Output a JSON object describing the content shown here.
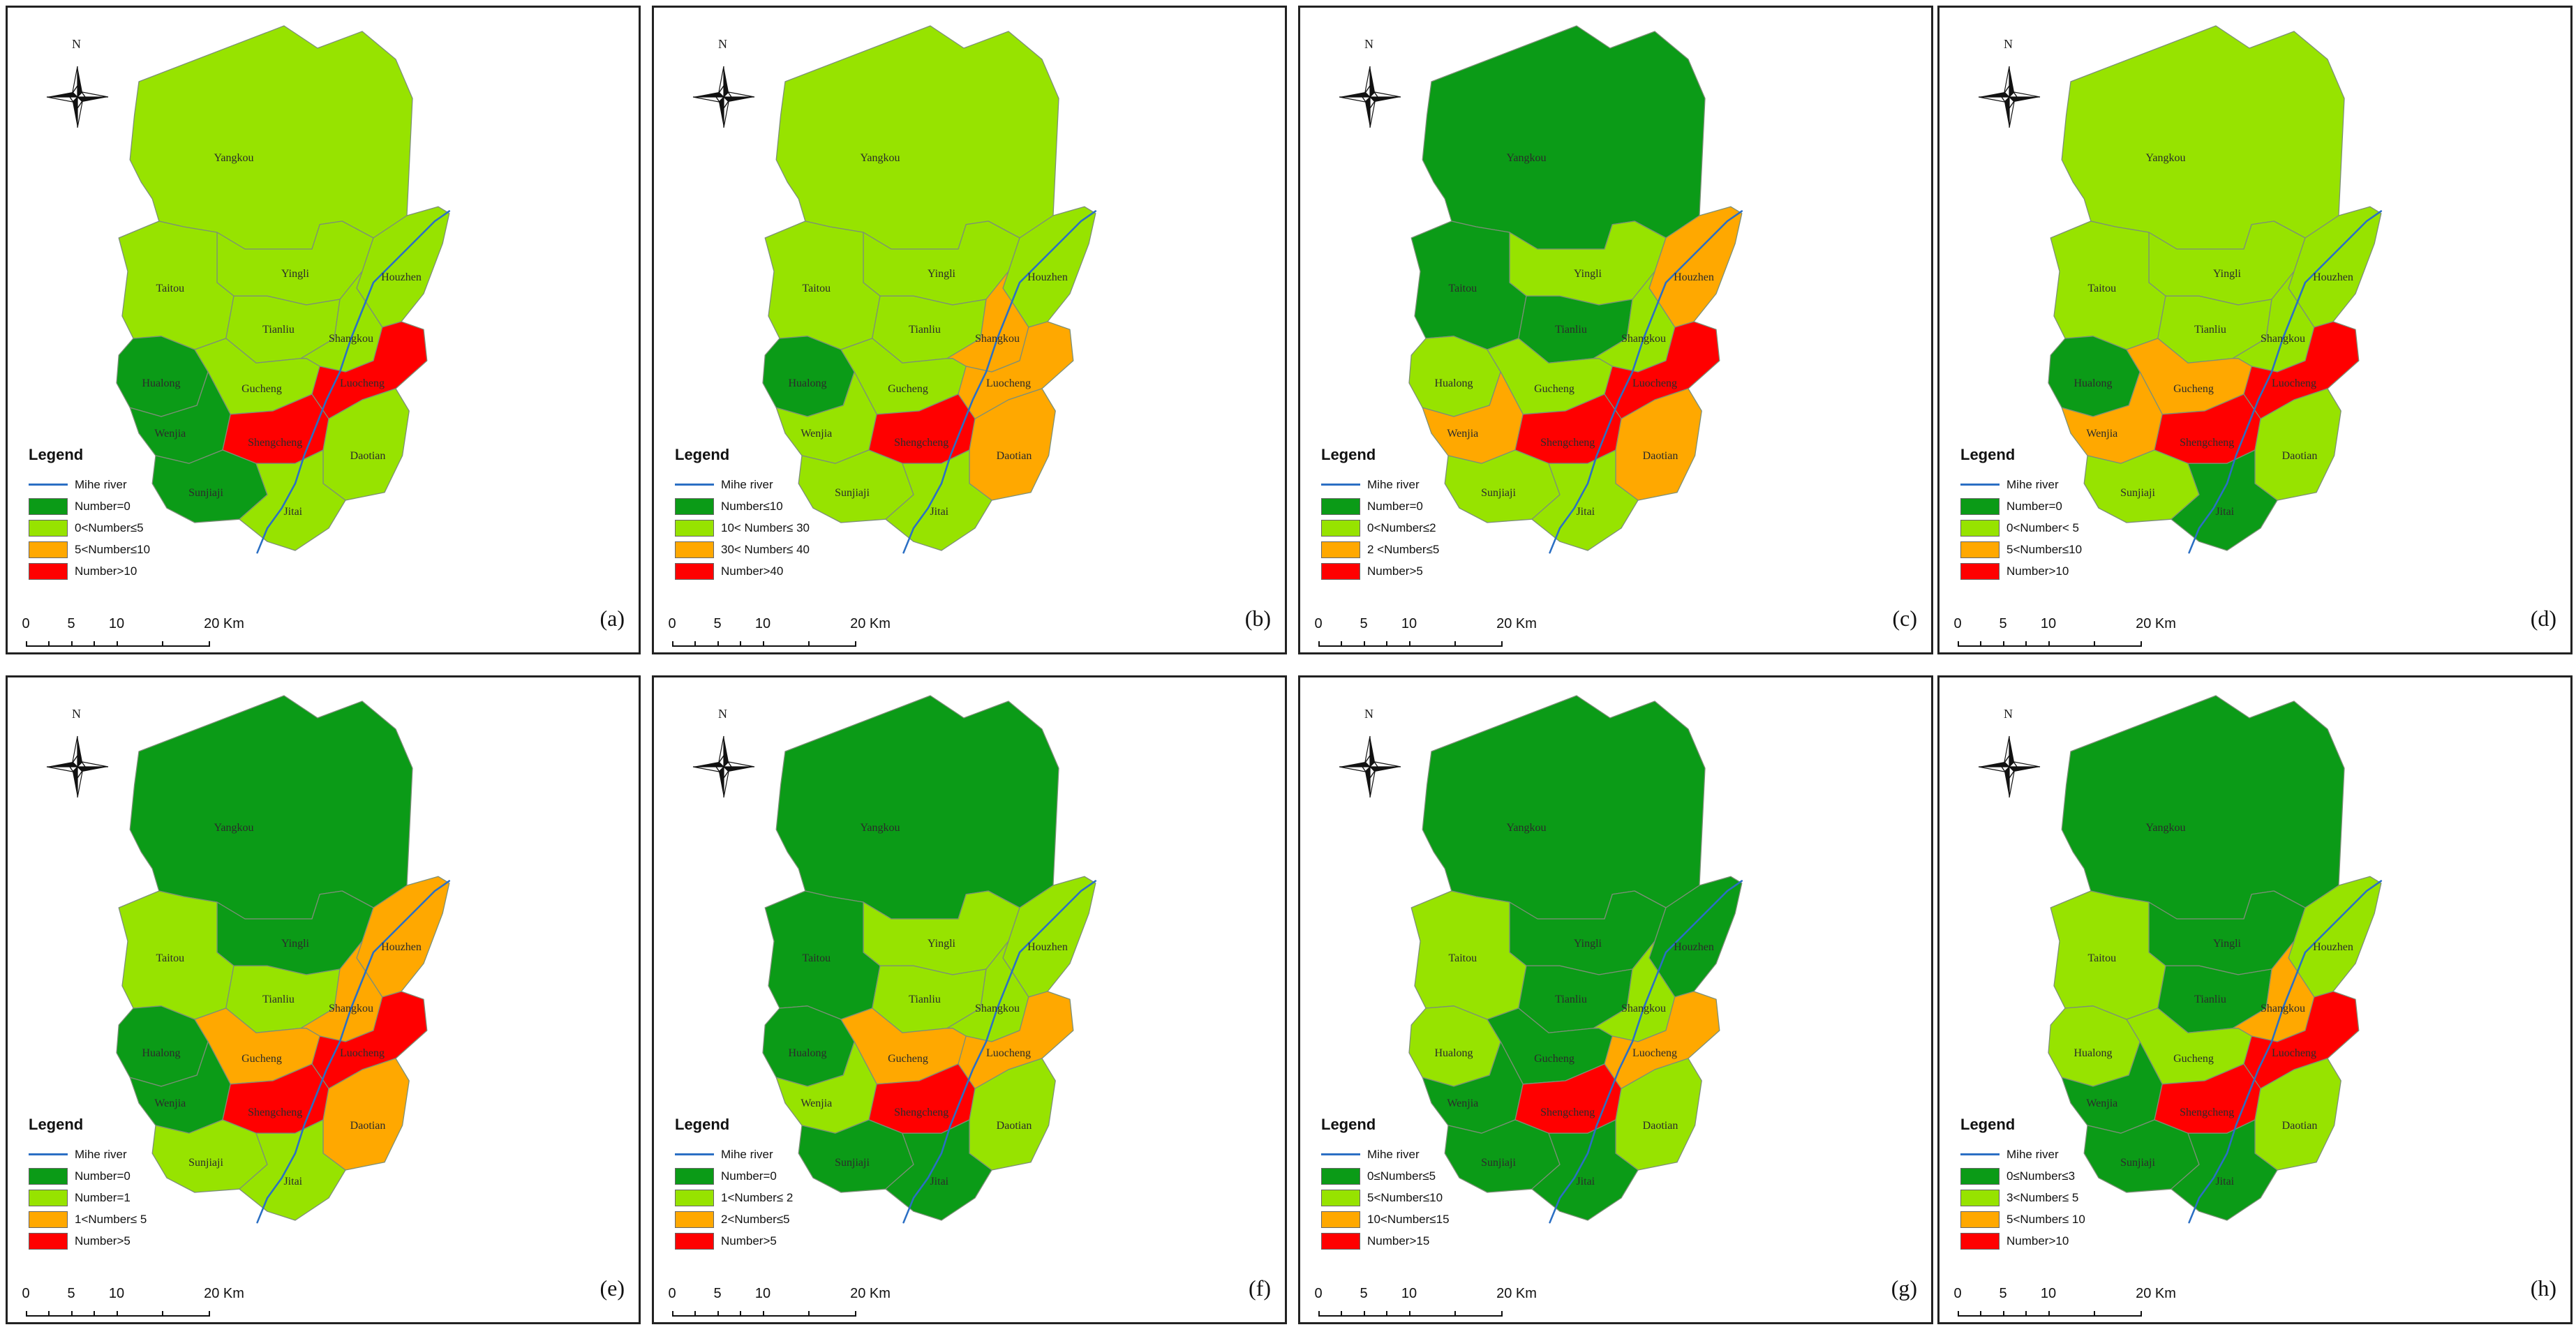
{
  "north_label": "N",
  "river_name": "Mihe river",
  "legend_title": "Legend",
  "scale_labels": [
    "0",
    "5",
    "10",
    "20 Km"
  ],
  "palette": {
    "dark_green": "#0b9b17",
    "light_green": "#97e300",
    "orange": "#ffa800",
    "red": "#ff0000",
    "river": "#2b6fc4",
    "border": "#7c8f78"
  },
  "regions": [
    {
      "key": "yangkou",
      "label": "Yangkou"
    },
    {
      "key": "yingli",
      "label": "Yingli"
    },
    {
      "key": "taitou",
      "label": "Taitou"
    },
    {
      "key": "tianliu",
      "label": "Tianliu"
    },
    {
      "key": "houzhen",
      "label": "Houzhen"
    },
    {
      "key": "shangkou",
      "label": "Shangkou"
    },
    {
      "key": "hualong",
      "label": "Hualong"
    },
    {
      "key": "gucheng",
      "label": "Gucheng"
    },
    {
      "key": "luocheng",
      "label": "Luocheng"
    },
    {
      "key": "wenjia",
      "label": "Wenjia"
    },
    {
      "key": "shengcheng",
      "label": "Shengcheng"
    },
    {
      "key": "daotian",
      "label": "Daotian"
    },
    {
      "key": "sunjiaji",
      "label": "Sunjiaji"
    },
    {
      "key": "jitai",
      "label": "Jitai"
    }
  ],
  "panels": [
    {
      "id": "a",
      "label": "(a)",
      "legend": [
        "Number=0",
        "0<Number≤5",
        "5<Number≤10",
        "Number>10"
      ],
      "colors": {
        "yangkou": "light_green",
        "yingli": "light_green",
        "taitou": "light_green",
        "tianliu": "light_green",
        "houzhen": "light_green",
        "shangkou": "light_green",
        "hualong": "dark_green",
        "gucheng": "light_green",
        "luocheng": "red",
        "wenjia": "dark_green",
        "shengcheng": "red",
        "daotian": "light_green",
        "sunjiaji": "dark_green",
        "jitai": "light_green"
      }
    },
    {
      "id": "b",
      "label": "(b)",
      "legend": [
        "Number≤10",
        "10< Number≤ 30",
        "30< Number≤ 40",
        "Number>40"
      ],
      "colors": {
        "yangkou": "light_green",
        "yingli": "light_green",
        "taitou": "light_green",
        "tianliu": "light_green",
        "houzhen": "light_green",
        "shangkou": "orange",
        "hualong": "dark_green",
        "gucheng": "light_green",
        "luocheng": "orange",
        "wenjia": "light_green",
        "shengcheng": "red",
        "daotian": "orange",
        "sunjiaji": "light_green",
        "jitai": "light_green"
      }
    },
    {
      "id": "c",
      "label": "(c)",
      "legend": [
        "Number=0",
        "0<Number≤2",
        "2 <Number≤5",
        "Number>5"
      ],
      "colors": {
        "yangkou": "dark_green",
        "yingli": "light_green",
        "taitou": "dark_green",
        "tianliu": "dark_green",
        "houzhen": "orange",
        "shangkou": "light_green",
        "hualong": "light_green",
        "gucheng": "light_green",
        "luocheng": "red",
        "wenjia": "orange",
        "shengcheng": "red",
        "daotian": "orange",
        "sunjiaji": "light_green",
        "jitai": "light_green"
      }
    },
    {
      "id": "d",
      "label": "(d)",
      "legend": [
        "Number=0",
        "0<Number< 5",
        "5<Number≤10",
        "Number>10"
      ],
      "colors": {
        "yangkou": "light_green",
        "yingli": "light_green",
        "taitou": "light_green",
        "tianliu": "light_green",
        "houzhen": "light_green",
        "shangkou": "light_green",
        "hualong": "dark_green",
        "gucheng": "orange",
        "luocheng": "red",
        "wenjia": "orange",
        "shengcheng": "red",
        "daotian": "light_green",
        "sunjiaji": "light_green",
        "jitai": "dark_green"
      }
    },
    {
      "id": "e",
      "label": "(e)",
      "legend": [
        "Number=0",
        "Number=1",
        "1<Number≤ 5",
        "Number>5"
      ],
      "colors": {
        "yangkou": "dark_green",
        "yingli": "dark_green",
        "taitou": "light_green",
        "tianliu": "light_green",
        "houzhen": "orange",
        "shangkou": "orange",
        "hualong": "dark_green",
        "gucheng": "orange",
        "luocheng": "red",
        "wenjia": "dark_green",
        "shengcheng": "red",
        "daotian": "orange",
        "sunjiaji": "light_green",
        "jitai": "light_green"
      }
    },
    {
      "id": "f",
      "label": "(f)",
      "legend": [
        "Number=0",
        "1<Number≤ 2",
        "2<Number≤5",
        "Number>5"
      ],
      "colors": {
        "yangkou": "dark_green",
        "yingli": "light_green",
        "taitou": "dark_green",
        "tianliu": "light_green",
        "houzhen": "light_green",
        "shangkou": "light_green",
        "hualong": "dark_green",
        "gucheng": "orange",
        "luocheng": "orange",
        "wenjia": "light_green",
        "shengcheng": "red",
        "daotian": "light_green",
        "sunjiaji": "dark_green",
        "jitai": "dark_green"
      }
    },
    {
      "id": "g",
      "label": "(g)",
      "legend": [
        "0≤Number≤5",
        "5<Number≤10",
        "10<Number≤15",
        "Number>15"
      ],
      "colors": {
        "yangkou": "dark_green",
        "yingli": "dark_green",
        "taitou": "light_green",
        "tianliu": "dark_green",
        "houzhen": "dark_green",
        "shangkou": "light_green",
        "hualong": "light_green",
        "gucheng": "dark_green",
        "luocheng": "orange",
        "wenjia": "dark_green",
        "shengcheng": "red",
        "daotian": "light_green",
        "sunjiaji": "dark_green",
        "jitai": "dark_green"
      }
    },
    {
      "id": "h",
      "label": "(h)",
      "legend": [
        "0≤Number≤3",
        "3<Number≤ 5",
        "5<Number≤ 10",
        "Number>10"
      ],
      "colors": {
        "yangkou": "dark_green",
        "yingli": "dark_green",
        "taitou": "light_green",
        "tianliu": "dark_green",
        "houzhen": "light_green",
        "shangkou": "orange",
        "hualong": "light_green",
        "gucheng": "light_green",
        "luocheng": "red",
        "wenjia": "dark_green",
        "shengcheng": "red",
        "daotian": "light_green",
        "sunjiaji": "dark_green",
        "jitai": "dark_green"
      }
    }
  ]
}
